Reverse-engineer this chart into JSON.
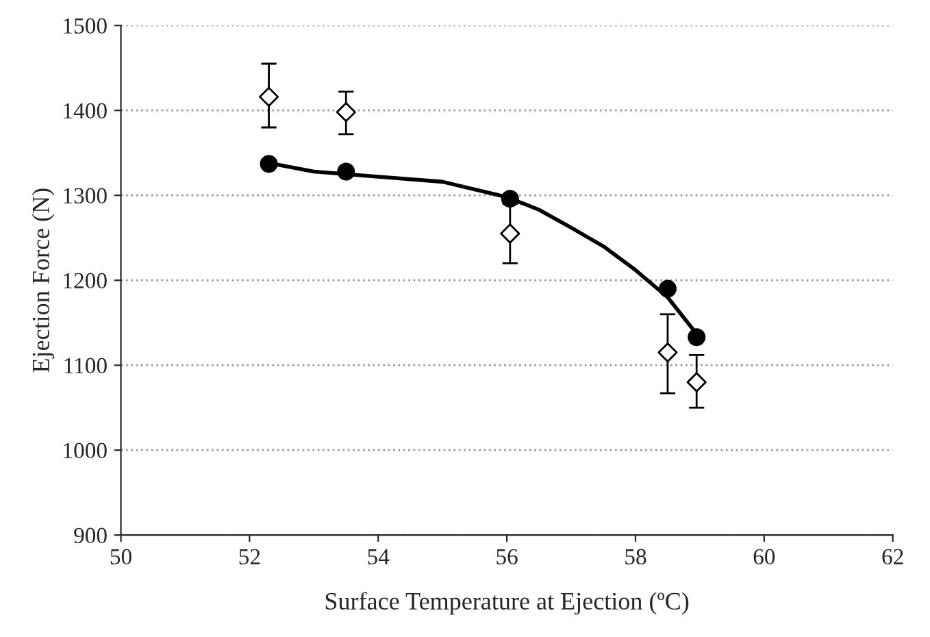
{
  "chart_data": {
    "type": "scatter",
    "xlabel": "Surface Temperature at Ejection (ºC)",
    "ylabel": "Ejection Force (N)",
    "xlim": [
      50,
      62
    ],
    "xticks": [
      50,
      52,
      54,
      56,
      58,
      60,
      62
    ],
    "ylim": [
      900,
      1500
    ],
    "yticks": [
      900,
      1000,
      1100,
      1200,
      1300,
      1400,
      1500
    ],
    "grid": "y",
    "series": [
      {
        "type": "line",
        "color": "#000000",
        "marker": "none",
        "line_style": "solid",
        "x": [
          52.3,
          53,
          54,
          55,
          56,
          56.5,
          57,
          57.5,
          58,
          58.5,
          59
        ],
        "values": [
          1338,
          1328,
          1322,
          1316,
          1298,
          1283,
          1262,
          1240,
          1212,
          1180,
          1132
        ]
      },
      {
        "color": "#000000",
        "marker": "circle",
        "x": [
          52.3,
          53.5,
          56.05,
          58.5,
          58.95
        ],
        "values": [
          1337,
          1328,
          1296,
          1190,
          1133
        ]
      },
      {
        "color": "#000000",
        "marker": "diamond",
        "x": [
          52.3,
          53.5,
          56.05,
          58.5,
          58.95
        ],
        "values": [
          1416,
          1398,
          1255,
          1115,
          1080
        ],
        "errors": [
          [
            1380,
            1455
          ],
          [
            1372,
            1422
          ],
          [
            1220,
            1290
          ],
          [
            1067,
            1160
          ],
          [
            1050,
            1112
          ]
        ]
      }
    ]
  }
}
